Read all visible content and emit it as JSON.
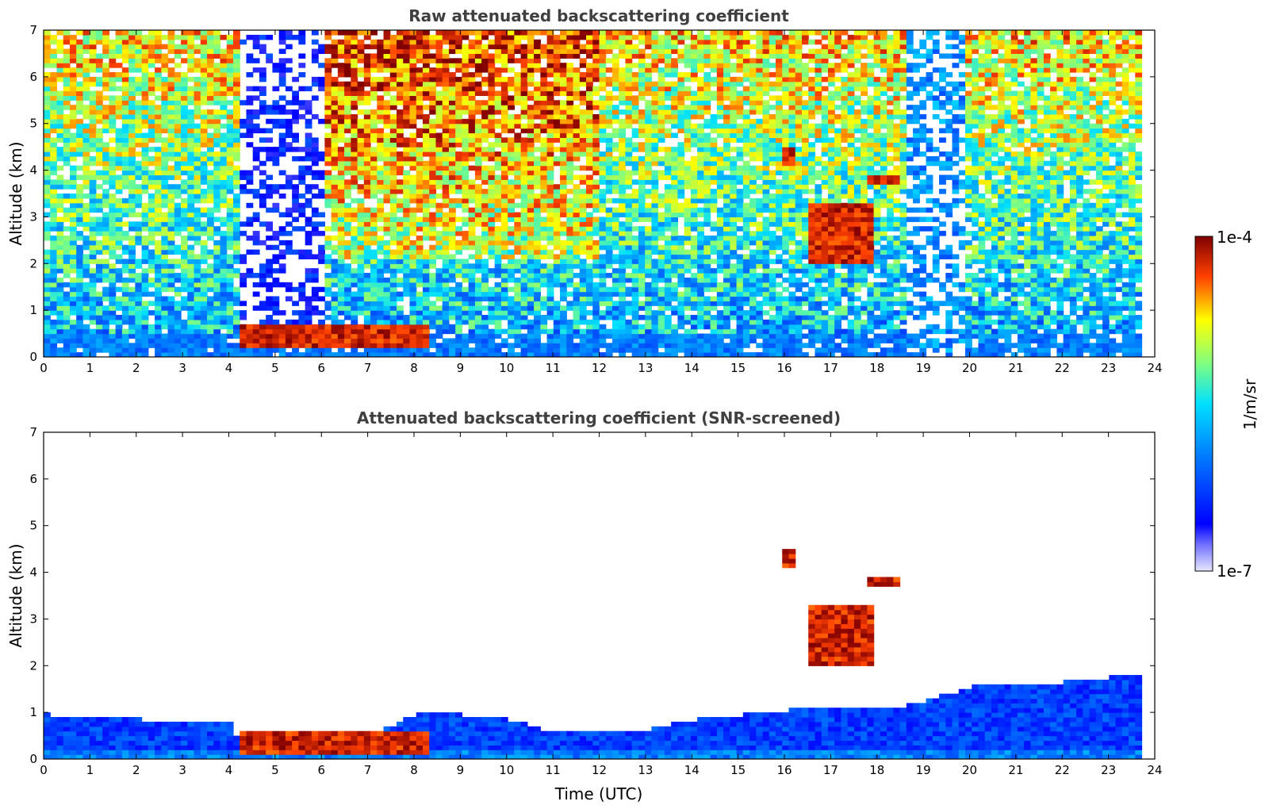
{
  "chart_data": [
    {
      "type": "heatmap",
      "title": "Raw attenuated backscattering coefficient",
      "xlabel": "",
      "ylabel": "Altitude (km)",
      "xlim": [
        0,
        24
      ],
      "ylim": [
        0,
        7
      ],
      "x_ticks": [
        "0",
        "1",
        "2",
        "3",
        "4",
        "5",
        "6",
        "7",
        "8",
        "9",
        "10",
        "11",
        "12",
        "13",
        "14",
        "15",
        "16",
        "17",
        "18",
        "19",
        "20",
        "21",
        "22",
        "23",
        "24"
      ],
      "y_ticks": [
        "0",
        "1",
        "2",
        "3",
        "4",
        "5",
        "6",
        "7"
      ],
      "data_end_hour": 23.6,
      "features": [
        {
          "name": "Dense surface layer",
          "x_start": 4.1,
          "x_end": 8.3,
          "y_start": 0.1,
          "y_end": 0.6,
          "level": 1.0
        },
        {
          "name": "Cloud plume",
          "x_start": 16.5,
          "x_end": 17.9,
          "y_start": 2.0,
          "y_end": 3.2,
          "level": 0.95
        },
        {
          "name": "Elevated cloud",
          "x_start": 15.9,
          "x_end": 16.2,
          "y_start": 4.1,
          "y_end": 4.4,
          "level": 1.0
        },
        {
          "name": "Elevated cloud",
          "x_start": 17.7,
          "x_end": 18.4,
          "y_start": 3.6,
          "y_end": 3.9,
          "level": 1.0
        },
        {
          "name": "Noise gap",
          "x_start": 4.1,
          "x_end": 6.0,
          "y_start": 0.2,
          "y_end": 7.0,
          "level": 0.0
        },
        {
          "name": "Missing profiles",
          "x_start": 18.6,
          "x_end": 19.9,
          "y_start": 0.0,
          "y_end": 7.0,
          "level": -1
        }
      ]
    },
    {
      "type": "heatmap",
      "title": "Attenuated backscattering coefficient (SNR-screened)",
      "xlabel": "Time (UTC)",
      "ylabel": "Altitude (km)",
      "xlim": [
        0,
        24
      ],
      "ylim": [
        0,
        7
      ],
      "x_ticks": [
        "0",
        "1",
        "2",
        "3",
        "4",
        "5",
        "6",
        "7",
        "8",
        "9",
        "10",
        "11",
        "12",
        "13",
        "14",
        "15",
        "16",
        "17",
        "18",
        "19",
        "20",
        "21",
        "22",
        "23",
        "24"
      ],
      "y_ticks": [
        "0",
        "1",
        "2",
        "3",
        "4",
        "5",
        "6",
        "7"
      ],
      "data_end_hour": 23.6,
      "boundary_layer_top_km": [
        [
          0,
          0.9
        ],
        [
          1,
          0.85
        ],
        [
          2,
          0.8
        ],
        [
          3,
          0.75
        ],
        [
          4,
          0.7
        ],
        [
          4.2,
          0.2
        ],
        [
          5,
          0.18
        ],
        [
          6,
          0.2
        ],
        [
          7,
          0.5
        ],
        [
          8,
          0.9
        ],
        [
          9,
          0.9
        ],
        [
          10,
          0.8
        ],
        [
          11,
          0.5
        ],
        [
          12,
          0.5
        ],
        [
          13,
          0.6
        ],
        [
          14,
          0.8
        ],
        [
          15,
          0.9
        ],
        [
          16,
          1.0
        ],
        [
          16.4,
          1.1
        ],
        [
          18,
          1.0
        ],
        [
          19,
          1.2
        ],
        [
          20,
          1.5
        ],
        [
          21,
          1.5
        ],
        [
          22,
          1.6
        ],
        [
          23,
          1.7
        ],
        [
          23.6,
          1.7
        ]
      ],
      "features": [
        {
          "name": "Dense surface layer",
          "x_start": 4.1,
          "x_end": 8.3,
          "y_start": 0.05,
          "y_end": 0.55,
          "level": 1.0
        },
        {
          "name": "Cloud plume",
          "x_start": 16.5,
          "x_end": 17.9,
          "y_start": 2.0,
          "y_end": 3.2,
          "level": 0.95
        },
        {
          "name": "Elevated cloud",
          "x_start": 15.9,
          "x_end": 16.2,
          "y_start": 4.1,
          "y_end": 4.4,
          "level": 1.0
        },
        {
          "name": "Elevated cloud",
          "x_start": 17.7,
          "x_end": 18.4,
          "y_start": 3.6,
          "y_end": 3.9,
          "level": 1.0
        }
      ]
    }
  ],
  "colorbar": {
    "label": "1/m/sr",
    "max_label": "1e-4",
    "min_label": "1e-7",
    "colormap": "jet",
    "colors": [
      "#ffffff",
      "#0000ff",
      "#00ffff",
      "#ffff00",
      "#ff0000",
      "#800000"
    ]
  }
}
